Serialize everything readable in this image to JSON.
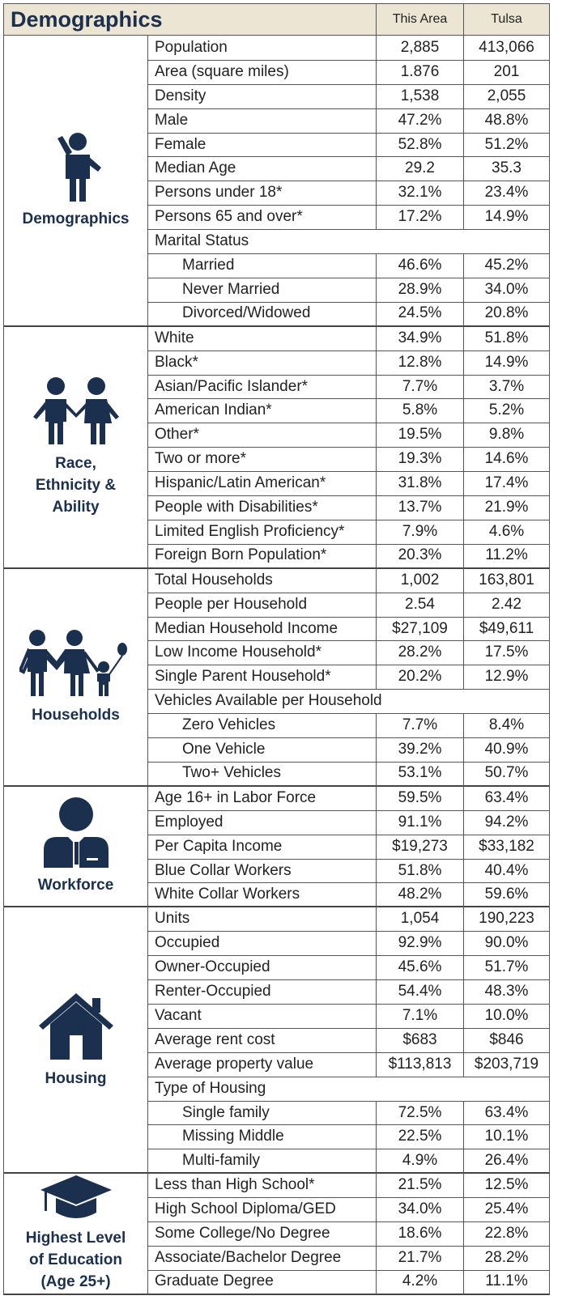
{
  "header": {
    "title": "Demographics",
    "columns": [
      "This Area",
      "Tulsa"
    ]
  },
  "sections": [
    {
      "label": [
        "Demographics"
      ],
      "rows": [
        {
          "label": "Population",
          "values": [
            "2,885",
            "413,066"
          ]
        },
        {
          "label": "Area (square miles)",
          "values": [
            "1.876",
            "201"
          ]
        },
        {
          "label": "Density",
          "values": [
            "1,538",
            "2,055"
          ]
        },
        {
          "label": "Male",
          "values": [
            "47.2%",
            "48.8%"
          ]
        },
        {
          "label": "Female",
          "values": [
            "52.8%",
            "51.2%"
          ]
        },
        {
          "label": "Median Age",
          "values": [
            "29.2",
            "35.3"
          ]
        },
        {
          "label": "Persons under 18*",
          "values": [
            "32.1%",
            "23.4%"
          ]
        },
        {
          "label": "Persons 65 and over*",
          "values": [
            "17.2%",
            "14.9%"
          ]
        },
        {
          "label": "Marital Status",
          "rows": [
            {
              "label": "Married",
              "values": [
                "46.6%",
                "45.2%"
              ]
            },
            {
              "label": "Never Married",
              "values": [
                "28.9%",
                "34.0%"
              ]
            },
            {
              "label": "Divorced/Widowed",
              "values": [
                "24.5%",
                "20.8%"
              ]
            }
          ]
        }
      ]
    },
    {
      "label": [
        "Race,",
        "Ethnicity &",
        "Ability"
      ],
      "rows": [
        {
          "label": "White",
          "values": [
            "34.9%",
            "51.8%"
          ]
        },
        {
          "label": "Black*",
          "values": [
            "12.8%",
            "14.9%"
          ]
        },
        {
          "label": "Asian/Pacific Islander*",
          "values": [
            "7.7%",
            "3.7%"
          ]
        },
        {
          "label": "American Indian*",
          "values": [
            "5.8%",
            "5.2%"
          ]
        },
        {
          "label": "Other*",
          "values": [
            "19.5%",
            "9.8%"
          ]
        },
        {
          "label": "Two or more*",
          "values": [
            "19.3%",
            "14.6%"
          ]
        },
        {
          "label": "Hispanic/Latin American*",
          "values": [
            "31.8%",
            "17.4%"
          ]
        },
        {
          "label": "People with Disabilities*",
          "values": [
            "13.7%",
            "21.9%"
          ]
        },
        {
          "label": "Limited English Proficiency*",
          "values": [
            "7.9%",
            "4.6%"
          ]
        },
        {
          "label": "Foreign Born Population*",
          "values": [
            "20.3%",
            "11.2%"
          ]
        }
      ]
    },
    {
      "label": [
        "Households"
      ],
      "rows": [
        {
          "label": "Total Households",
          "values": [
            "1,002",
            "163,801"
          ]
        },
        {
          "label": "People per Household",
          "values": [
            "2.54",
            "2.42"
          ]
        },
        {
          "label": "Median Household Income",
          "values": [
            "$27,109",
            "$49,611"
          ]
        },
        {
          "label": "Low Income Household*",
          "values": [
            "28.2%",
            "17.5%"
          ]
        },
        {
          "label": "Single Parent Household*",
          "values": [
            "20.2%",
            "12.9%"
          ]
        },
        {
          "label": "Vehicles Available per Household",
          "rows": [
            {
              "label": "Zero Vehicles",
              "values": [
                "7.7%",
                "8.4%"
              ]
            },
            {
              "label": "One Vehicle",
              "values": [
                "39.2%",
                "40.9%"
              ]
            },
            {
              "label": "Two+ Vehicles",
              "values": [
                "53.1%",
                "50.7%"
              ]
            }
          ]
        }
      ]
    },
    {
      "label": [
        "Workforce"
      ],
      "rows": [
        {
          "label": "Age 16+ in Labor Force",
          "values": [
            "59.5%",
            "63.4%"
          ]
        },
        {
          "label": "Employed",
          "values": [
            "91.1%",
            "94.2%"
          ]
        },
        {
          "label": "Per Capita Income",
          "values": [
            "$19,273",
            "$33,182"
          ]
        },
        {
          "label": "Blue Collar Workers",
          "values": [
            "51.8%",
            "40.4%"
          ]
        },
        {
          "label": "White Collar Workers",
          "values": [
            "48.2%",
            "59.6%"
          ]
        }
      ]
    },
    {
      "label": [
        "Housing"
      ],
      "rows": [
        {
          "label": "Units",
          "values": [
            "1,054",
            "190,223"
          ]
        },
        {
          "label": "Occupied",
          "values": [
            "92.9%",
            "90.0%"
          ]
        },
        {
          "label": "Owner-Occupied",
          "values": [
            "45.6%",
            "51.7%"
          ]
        },
        {
          "label": "Renter-Occupied",
          "values": [
            "54.4%",
            "48.3%"
          ]
        },
        {
          "label": "Vacant",
          "values": [
            "7.1%",
            "10.0%"
          ]
        },
        {
          "label": "Average rent cost",
          "values": [
            "$683",
            "$846"
          ]
        },
        {
          "label": "Average property value",
          "values": [
            "$113,813",
            "$203,719"
          ]
        },
        {
          "label": "Type of Housing",
          "rows": [
            {
              "label": "Single family",
              "values": [
                "72.5%",
                "63.4%"
              ]
            },
            {
              "label": "Missing Middle",
              "values": [
                "22.5%",
                "10.1%"
              ]
            },
            {
              "label": "Multi-family",
              "values": [
                "4.9%",
                "26.4%"
              ]
            }
          ]
        }
      ]
    },
    {
      "label": [
        "Highest Level",
        "of Education",
        "(Age 25+)"
      ],
      "rows": [
        {
          "label": "Less than High School*",
          "values": [
            "21.5%",
            "12.5%"
          ]
        },
        {
          "label": "High School Diploma/GED",
          "values": [
            "34.0%",
            "25.4%"
          ]
        },
        {
          "label": "Some College/No Degree",
          "values": [
            "18.6%",
            "22.8%"
          ]
        },
        {
          "label": "Associate/Bachelor Degree",
          "values": [
            "21.7%",
            "28.2%"
          ]
        },
        {
          "label": "Graduate Degree",
          "values": [
            "4.2%",
            "11.1%"
          ]
        }
      ]
    }
  ]
}
